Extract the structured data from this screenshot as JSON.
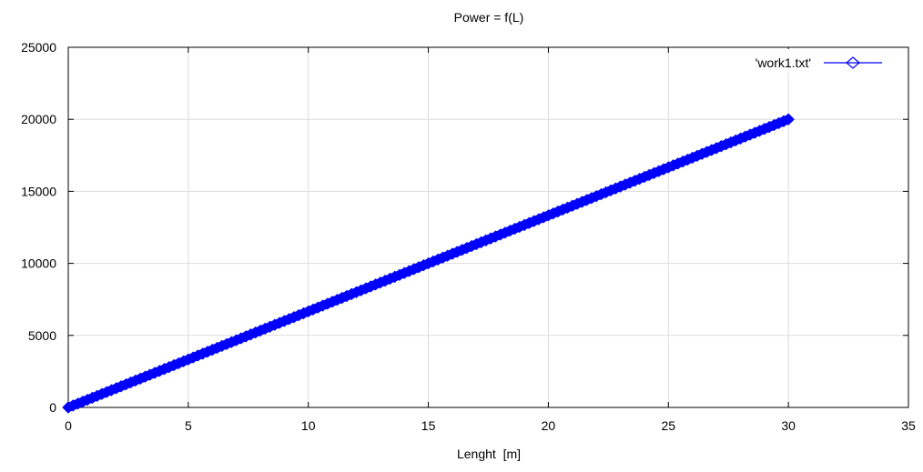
{
  "chart_data": {
    "type": "line",
    "title": "Power = f(L)",
    "xlabel": "Lenght  [m]",
    "ylabel": "",
    "xlim": [
      0,
      35
    ],
    "ylim": [
      0,
      25000
    ],
    "x_ticks": [
      0,
      5,
      10,
      15,
      20,
      25,
      30,
      35
    ],
    "y_ticks": [
      0,
      5000,
      10000,
      15000,
      20000,
      25000
    ],
    "grid": true,
    "legend_position": "top-right",
    "series": [
      {
        "name": "'work1.txt'",
        "color": "#0000ff",
        "marker": "diamond",
        "x": [
          0,
          5,
          10,
          15,
          20,
          25,
          30
        ],
        "y": [
          0,
          3333,
          6667,
          10000,
          13333,
          16667,
          20000
        ],
        "dense_sampling": true
      }
    ]
  }
}
